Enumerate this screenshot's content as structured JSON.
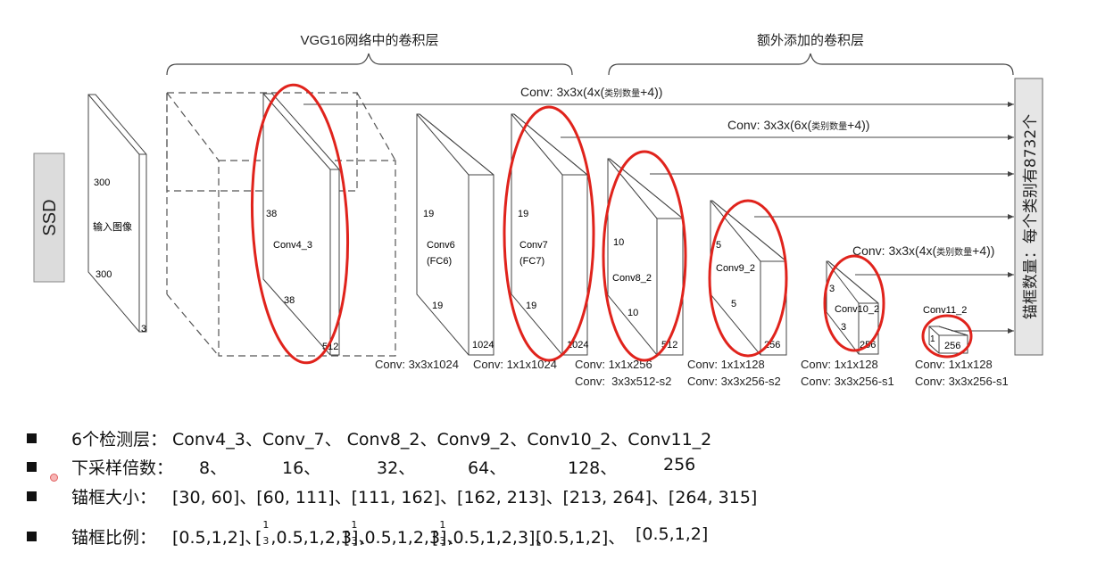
{
  "header": {
    "vgg_label": "VGG16网络中的卷积层",
    "extra_label": "额外添加的卷积层"
  },
  "ssd_label": "SSD",
  "input": {
    "size_top": "300",
    "name": "输入图像",
    "size_bottom": "300",
    "channels": "3"
  },
  "blocks": {
    "conv4": {
      "size_left": "38",
      "name": "Conv4_3",
      "size_bottom": "38",
      "depth": "512"
    },
    "conv6": {
      "size_left": "19",
      "name": "Conv6",
      "sub": "(FC6)",
      "size_bottom": "19",
      "depth": "1024"
    },
    "conv7": {
      "size_left": "19",
      "name": "Conv7",
      "sub": "(FC7)",
      "size_bottom": "19",
      "depth": "1024"
    },
    "conv8": {
      "size_left": "10",
      "name": "Conv8_2",
      "size_bottom": "10",
      "depth": "512"
    },
    "conv9": {
      "size_left": "5",
      "name": "Conv9_2",
      "size_bottom": "5",
      "depth": "256"
    },
    "conv10": {
      "size_left": "3",
      "name": "Conv10_2",
      "size_bottom": "3",
      "depth": "256"
    },
    "conv11": {
      "name": "Conv11_2",
      "size_left": "1",
      "depth": "256"
    }
  },
  "conv_labels": {
    "c6": "Conv: 3x3x1024",
    "c7": "Conv: 1x1x1024",
    "c8a": "Conv: 1x1x256",
    "c8b": "Conv:  3x3x512-s2",
    "c9a": "Conv: 1x1x128",
    "c9b": "Conv: 3x3x256-s2",
    "c10a": "Conv: 1x1x128",
    "c10b": "Conv: 3x3x256-s1",
    "c11a": "Conv: 1x1x128",
    "c11b": "Conv: 3x3x256-s1"
  },
  "arrows": {
    "a1_pre": "Conv: 3x3x(4x(",
    "a1_small": "类别数量",
    "a1_post": "+4))",
    "a2_pre": "Conv: 3x3x(6x(",
    "a2_small": "类别数量",
    "a2_post": "+4))",
    "a3_pre": "Conv: 3x3x(4x(",
    "a3_small": "类别数量",
    "a3_post": "+4))"
  },
  "output_box": "锚框数量：每个类别有8732个",
  "bullets": {
    "b1_label": "6个检测层：",
    "b1_value": "Conv4_3、Conv_7、  Conv8_2、Conv9_2、Conv10_2、Conv11_2",
    "b2_label": "下采样倍数：",
    "b2_values": [
      "8、",
      "16、",
      "32、",
      "64、",
      "128、",
      "256"
    ],
    "b3_label": "锚框大小：",
    "b3_value": "[30, 60]、[60, 111]、[111, 162]、[162, 213]、[213, 264]、[264, 315]",
    "b4_label": "锚框比例：",
    "b4_v1": "[0.5,1,2]、",
    "b4_frac_n": "1",
    "b4_frac_d": "3",
    "b4_v2a": "[",
    "b4_v2b": ",0.5,1,2,3]、",
    "b4_v5": "[0.5,1,2]、",
    "b4_v6": "[0.5,1,2]"
  }
}
